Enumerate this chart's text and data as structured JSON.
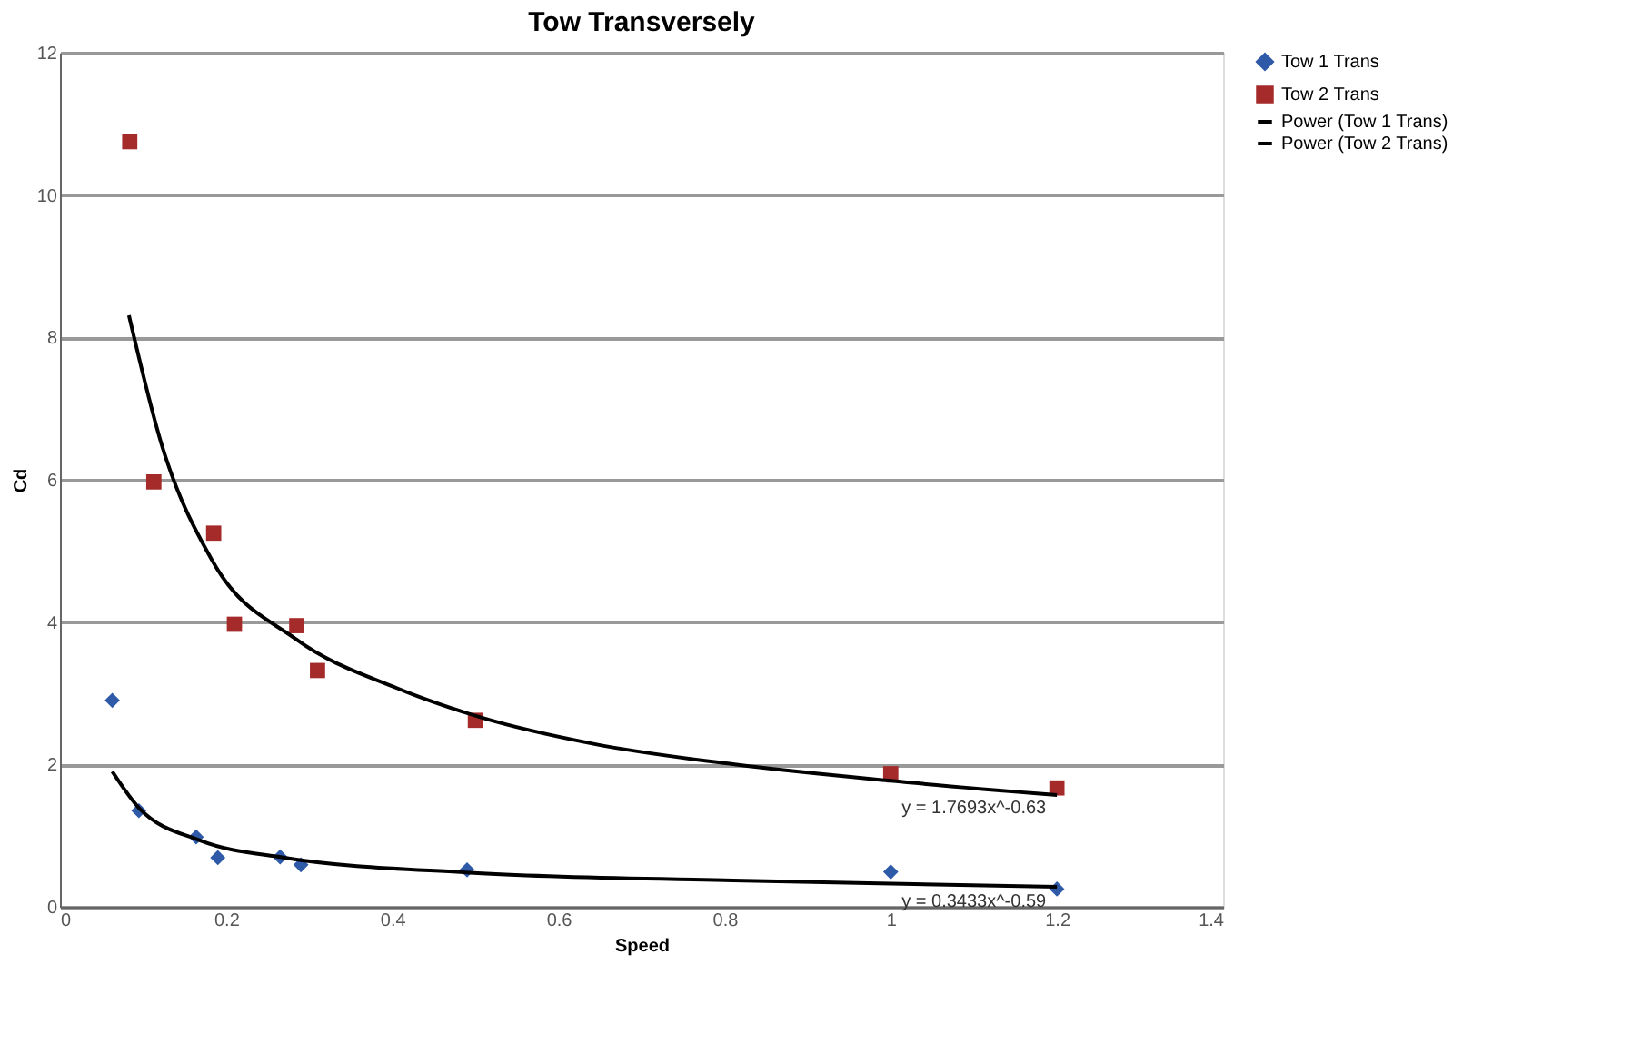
{
  "chart_data": {
    "type": "scatter",
    "title": "Tow Transversely",
    "xlabel": "Speed",
    "ylabel": "Cd",
    "xlim": [
      0,
      1.4
    ],
    "xticks": [
      0,
      0.2,
      0.4,
      0.6,
      0.8,
      1,
      1.2,
      1.4
    ],
    "ylim": [
      0,
      12
    ],
    "yticks": [
      0,
      2,
      4,
      6,
      8,
      10,
      12
    ],
    "grid": "y",
    "legend": "right",
    "series": [
      {
        "name": "Tow 1 Trans",
        "type": "scatter",
        "marker": "diamond",
        "color": "#2e5aa8",
        "x": [
          0.063,
          0.095,
          0.164,
          0.19,
          0.265,
          0.29,
          0.49,
          1.0,
          1.2
        ],
        "values": [
          2.9,
          1.35,
          0.98,
          0.69,
          0.7,
          0.59,
          0.52,
          0.49,
          0.25
        ]
      },
      {
        "name": "Tow 2 Trans",
        "type": "scatter",
        "marker": "square",
        "color": "#a52a2a",
        "x": [
          0.084,
          0.113,
          0.185,
          0.21,
          0.285,
          0.31,
          0.5,
          1.0,
          1.2
        ],
        "values": [
          10.75,
          5.97,
          5.25,
          3.97,
          3.95,
          3.32,
          2.62,
          1.87,
          1.67
        ]
      },
      {
        "name": "Power (Tow 1 Trans)",
        "type": "line",
        "marker": "none",
        "line_style": "solid",
        "color": "#000000",
        "x": [
          0.063,
          0.095,
          0.169,
          0.27,
          0.493,
          0.81,
          1.2
        ],
        "values": [
          1.9,
          1.39,
          0.93,
          0.69,
          0.48,
          0.37,
          0.28
        ]
      },
      {
        "name": "Power (Tow 2 Trans)",
        "type": "line",
        "marker": "none",
        "line_style": "solid",
        "color": "#000000",
        "x": [
          0.083,
          0.122,
          0.183,
          0.284,
          0.406,
          0.507,
          0.642,
          0.812,
          1.0,
          1.2
        ],
        "values": [
          8.31,
          6.51,
          4.87,
          3.76,
          3.07,
          2.66,
          2.29,
          2.0,
          1.77,
          1.57
        ]
      }
    ],
    "annotations": [
      {
        "text": "y = 1.7693x^-0.63",
        "x": 1.1,
        "y": 1.6
      },
      {
        "text": "y = 0.3433x^-0.59",
        "x": 1.1,
        "y": 0.28
      }
    ]
  }
}
